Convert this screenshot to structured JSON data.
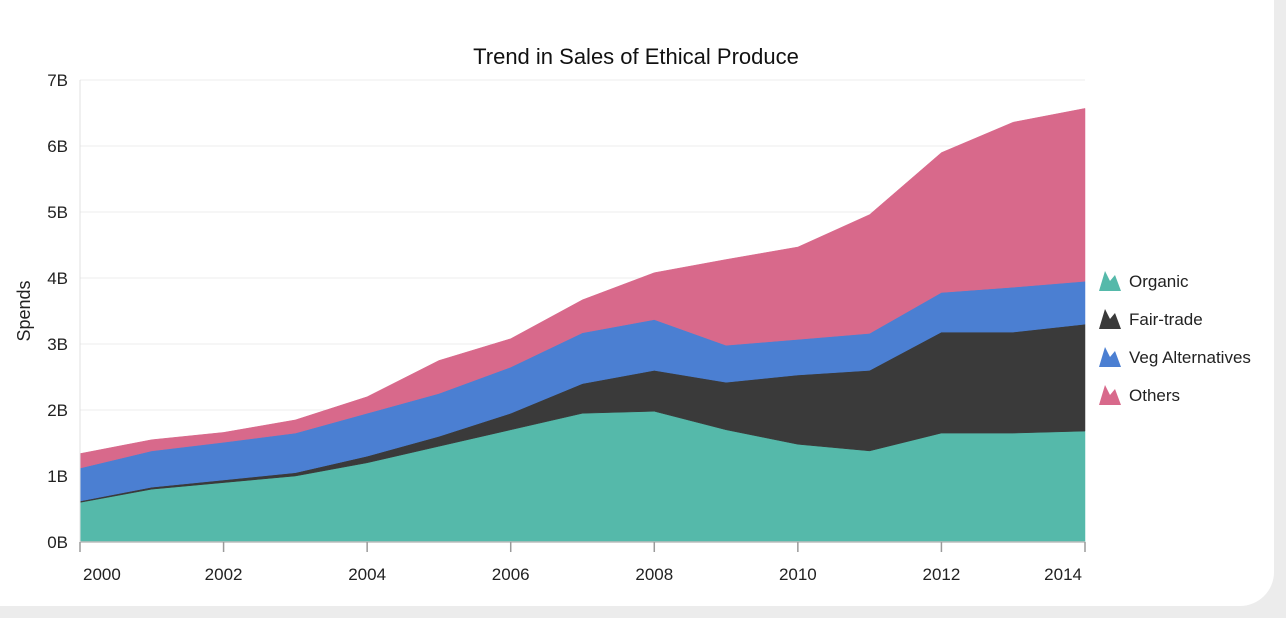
{
  "chart_data": {
    "type": "area",
    "stacked": true,
    "title": "Trend in Sales of Ethical Produce",
    "xlabel": "",
    "ylabel": "Spends",
    "x": [
      2000,
      2001,
      2002,
      2003,
      2004,
      2005,
      2006,
      2007,
      2008,
      2009,
      2010,
      2011,
      2012,
      2013,
      2014
    ],
    "x_tick_labels": [
      "2000",
      "2002",
      "2004",
      "2006",
      "2008",
      "2010",
      "2012",
      "2014"
    ],
    "x_ticks": [
      2000,
      2002,
      2004,
      2006,
      2008,
      2010,
      2012,
      2014
    ],
    "y_tick_labels": [
      "0B",
      "1B",
      "2B",
      "3B",
      "4B",
      "5B",
      "6B",
      "7B"
    ],
    "ylim": [
      0,
      7
    ],
    "xlim": [
      2000,
      2014
    ],
    "grid": true,
    "legend_position": "right",
    "series": [
      {
        "name": "Organic",
        "color": "#55b9aa",
        "values": [
          0.6,
          0.8,
          0.9,
          1.0,
          1.2,
          1.45,
          1.7,
          1.95,
          1.98,
          1.7,
          1.48,
          1.38,
          1.65,
          1.65,
          1.68
        ]
      },
      {
        "name": "Fair-trade",
        "color": "#3a3a3a",
        "values": [
          0.02,
          0.03,
          0.04,
          0.05,
          0.1,
          0.15,
          0.25,
          0.45,
          0.62,
          0.72,
          1.05,
          1.22,
          1.53,
          1.53,
          1.62
        ]
      },
      {
        "name": "Veg Alternatives",
        "color": "#4b7fd2",
        "values": [
          0.5,
          0.55,
          0.57,
          0.6,
          0.65,
          0.65,
          0.7,
          0.77,
          0.77,
          0.56,
          0.54,
          0.56,
          0.6,
          0.68,
          0.65
        ]
      },
      {
        "name": "Others",
        "color": "#d8698b",
        "values": [
          0.22,
          0.17,
          0.15,
          0.2,
          0.25,
          0.5,
          0.43,
          0.5,
          0.71,
          1.3,
          1.4,
          1.8,
          2.12,
          2.5,
          2.62
        ]
      }
    ]
  }
}
